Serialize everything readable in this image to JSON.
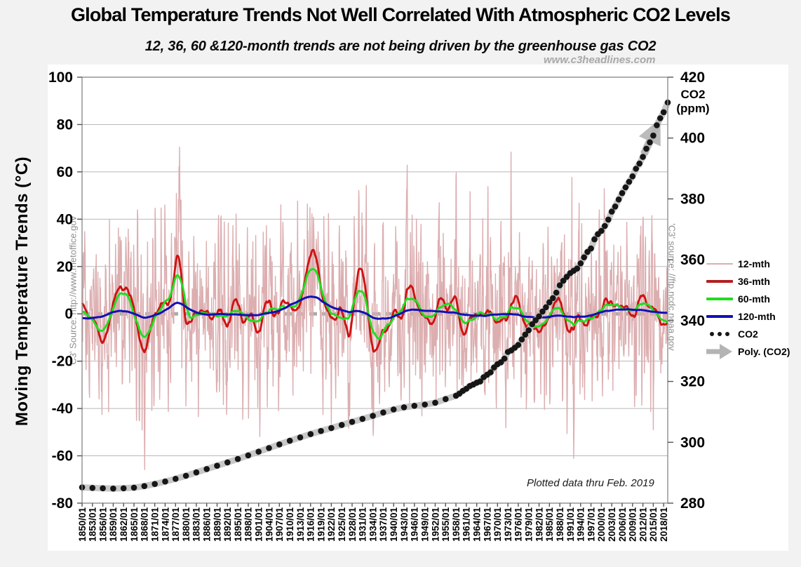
{
  "header": {
    "title": "Global Temperature Trends Not Well Correlated With Atmospheric CO2 Levels",
    "subtitle": "12, 36, 60 &120-month trends are not being driven by the greenhouse gas CO2",
    "watermark": "www.c3headlines.com"
  },
  "chart_data": {
    "type": "line",
    "title": "Global Temperature Trends Not Well Correlated With Atmospheric CO2 Levels",
    "subtitle": "12, 36, 60 &120-month trends are not being driven by the greenhouse gas CO2",
    "grid": "horizontal",
    "legend_position": "right",
    "left_axis": {
      "label": "Moving Temperature Trends (°C)",
      "min": -80,
      "max": 100,
      "tick_step": 20,
      "ticks": [
        100,
        80,
        60,
        40,
        20,
        0,
        -20,
        -40,
        -60,
        -80
      ]
    },
    "right_axis": {
      "label": "CO2\n(ppm)",
      "min": 280,
      "max": 420,
      "tick_step": 20,
      "ticks": [
        420,
        400,
        380,
        360,
        340,
        320,
        300,
        280
      ]
    },
    "x_axis": {
      "first": "1850/01",
      "last": "2018/01",
      "step_years": 3,
      "labels": [
        "1850/01",
        "1853/01",
        "1856/01",
        "1859/01",
        "1862/01",
        "1865/01",
        "1868/01",
        "1871/01",
        "1874/01",
        "1877/01",
        "1880/01",
        "1883/01",
        "1886/01",
        "1889/01",
        "1892/01",
        "1895/01",
        "1898/01",
        "1901/01",
        "1904/01",
        "1907/01",
        "1910/01",
        "1913/01",
        "1916/01",
        "1919/01",
        "1922/01",
        "1925/01",
        "1928/01",
        "1931/01",
        "1934/01",
        "1937/01",
        "1940/01",
        "1943/01",
        "1946/01",
        "1949/01",
        "1952/01",
        "1955/01",
        "1958/01",
        "1961/01",
        "1964/01",
        "1967/01",
        "1970/01",
        "1973/01",
        "1976/01",
        "1979/01",
        "1982/01",
        "1985/01",
        "1988/01",
        "1991/01",
        "1994/01",
        "1997/01",
        "2000/01",
        "2003/01",
        "2006/01",
        "2009/01",
        "2012/01",
        "2015/01",
        "2018/01"
      ]
    },
    "zero_line": {
      "value": 0,
      "style": "dashed",
      "color": "#ababab"
    },
    "annotations": {
      "left_source": "'C3' Source: http://www.metoffice.gov",
      "right_source": "'C3' source: //ftp.ncdc.noaa.gov",
      "note": "Plotted data thru Feb. 2019"
    },
    "months_range": [
      1850,
      2019.17
    ],
    "noise_seed": 20190228,
    "spike_year": 1878.2,
    "temperature_series": [
      {
        "name": "12-mth",
        "color": "#dcaeb0",
        "stroke_width": 1.4,
        "smooth_months": 2,
        "smooth_passes": 1,
        "sigma_deg": 19,
        "spike_amp_deg": 58,
        "spike_sigma_months": 4,
        "typical_range_deg": [
          -62,
          74
        ]
      },
      {
        "name": "36-mth",
        "color": "#cf1212",
        "stroke_width": 2.9,
        "smooth_months": 30,
        "smooth_passes": 2,
        "sigma_deg": 6.8,
        "spike_amp_deg": 14,
        "spike_sigma_months": 12,
        "typical_range_deg": [
          -18,
          23
        ]
      },
      {
        "name": "60-mth",
        "color": "#21dc21",
        "stroke_width": 2.9,
        "smooth_months": 50,
        "smooth_passes": 2,
        "sigma_deg": 4.8,
        "spike_amp_deg": 11,
        "spike_sigma_months": 16,
        "typical_range_deg": [
          -12,
          16
        ]
      },
      {
        "name": "120-mth",
        "color": "#1111b4",
        "stroke_width": 3.0,
        "smooth_months": 110,
        "smooth_passes": 2,
        "sigma_deg": 1.9,
        "spike_amp_deg": 2.5,
        "spike_sigma_months": 28,
        "typical_range_deg": [
          -4,
          5
        ]
      }
    ],
    "co2_series": {
      "name": "CO2",
      "dot_color": "#161616",
      "poly_name": "Poly. (CO2)",
      "poly_color": "#c5c5c5",
      "arrow_color": "#b4b4b4",
      "points": [
        [
          1850,
          285.2
        ],
        [
          1853,
          285.0
        ],
        [
          1856,
          284.9
        ],
        [
          1859,
          284.8
        ],
        [
          1862,
          284.9
        ],
        [
          1865,
          285.1
        ],
        [
          1868,
          285.6
        ],
        [
          1871,
          286.3
        ],
        [
          1874,
          287.1
        ],
        [
          1877,
          288.0
        ],
        [
          1880,
          289.0
        ],
        [
          1883,
          290.1
        ],
        [
          1886,
          291.2
        ],
        [
          1889,
          292.3
        ],
        [
          1892,
          293.4
        ],
        [
          1895,
          294.5
        ],
        [
          1898,
          295.7
        ],
        [
          1901,
          296.9
        ],
        [
          1904,
          298.1
        ],
        [
          1907,
          299.3
        ],
        [
          1910,
          300.5
        ],
        [
          1913,
          301.6
        ],
        [
          1916,
          302.7
        ],
        [
          1919,
          303.7
        ],
        [
          1922,
          304.7
        ],
        [
          1925,
          305.7
        ],
        [
          1928,
          306.7
        ],
        [
          1931,
          307.7
        ],
        [
          1934,
          308.7
        ],
        [
          1937,
          309.8
        ],
        [
          1940,
          310.8
        ],
        [
          1943,
          311.5
        ],
        [
          1946,
          312.0
        ],
        [
          1949,
          312.4
        ],
        [
          1952,
          313.0
        ],
        [
          1955,
          314.2
        ],
        [
          1958,
          315.3
        ],
        [
          1959,
          316.0
        ],
        [
          1960,
          316.9
        ],
        [
          1961,
          317.6
        ],
        [
          1962,
          318.5
        ],
        [
          1963,
          319.0
        ],
        [
          1964,
          319.6
        ],
        [
          1965,
          320.0
        ],
        [
          1966,
          321.4
        ],
        [
          1967,
          322.2
        ],
        [
          1968,
          323.0
        ],
        [
          1969,
          324.6
        ],
        [
          1970,
          325.7
        ],
        [
          1971,
          326.3
        ],
        [
          1972,
          327.5
        ],
        [
          1973,
          329.7
        ],
        [
          1974,
          330.2
        ],
        [
          1975,
          331.1
        ],
        [
          1976,
          332.0
        ],
        [
          1977,
          333.8
        ],
        [
          1978,
          335.4
        ],
        [
          1979,
          336.8
        ],
        [
          1980,
          338.8
        ],
        [
          1981,
          340.1
        ],
        [
          1982,
          341.4
        ],
        [
          1983,
          343.0
        ],
        [
          1984,
          344.4
        ],
        [
          1985,
          346.0
        ],
        [
          1986,
          347.4
        ],
        [
          1987,
          349.2
        ],
        [
          1988,
          351.6
        ],
        [
          1989,
          353.1
        ],
        [
          1990,
          354.4
        ],
        [
          1991,
          355.6
        ],
        [
          1992,
          356.4
        ],
        [
          1993,
          357.1
        ],
        [
          1994,
          358.8
        ],
        [
          1995,
          360.8
        ],
        [
          1996,
          362.6
        ],
        [
          1997,
          363.7
        ],
        [
          1998,
          366.7
        ],
        [
          1999,
          368.4
        ],
        [
          2000,
          369.5
        ],
        [
          2001,
          371.1
        ],
        [
          2002,
          373.2
        ],
        [
          2003,
          375.8
        ],
        [
          2004,
          377.5
        ],
        [
          2005,
          379.8
        ],
        [
          2006,
          381.9
        ],
        [
          2007,
          383.8
        ],
        [
          2008,
          385.6
        ],
        [
          2009,
          387.4
        ],
        [
          2010,
          389.9
        ],
        [
          2011,
          391.6
        ],
        [
          2012,
          393.8
        ],
        [
          2013,
          396.5
        ],
        [
          2014,
          398.6
        ],
        [
          2015,
          400.8
        ],
        [
          2016,
          404.2
        ],
        [
          2017,
          406.5
        ],
        [
          2018,
          408.5
        ],
        [
          2019.17,
          411.7
        ]
      ]
    },
    "legend": [
      {
        "label": "12-mth",
        "type": "line",
        "color": "#dcaeb0",
        "thickness": 2
      },
      {
        "label": "36-mth",
        "type": "line",
        "color": "#b32020",
        "thickness": 4
      },
      {
        "label": "60-mth",
        "type": "line",
        "color": "#21dc21",
        "thickness": 4
      },
      {
        "label": "120-mth",
        "type": "line",
        "color": "#1111b4",
        "thickness": 4
      },
      {
        "label": "CO2",
        "type": "dots",
        "color": "#161616"
      },
      {
        "label": "Poly. (CO2)",
        "type": "arrow",
        "color": "#b4b4b4"
      }
    ]
  }
}
